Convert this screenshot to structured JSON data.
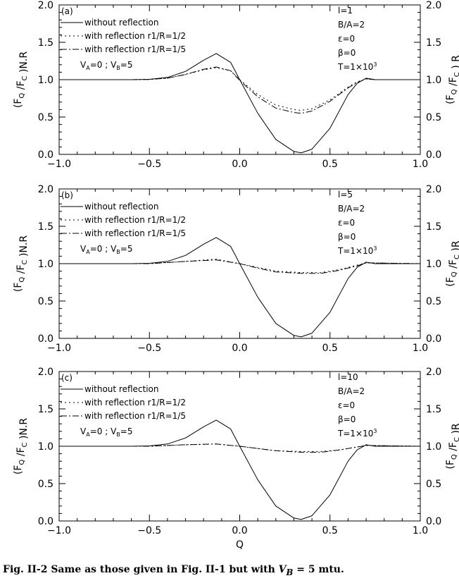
{
  "chart_data": [
    {
      "type": "line",
      "panel_label": "(a)",
      "xlim": [
        -1.0,
        1.0
      ],
      "ylim": [
        0.0,
        2.0
      ],
      "x_ticks": [
        "−1.0",
        "−0.5",
        "0.0",
        "0.5",
        "1.0"
      ],
      "y_ticks": [
        "0.0",
        "0.5",
        "1.0",
        "1.5",
        "2.0"
      ],
      "ylabel_left": "(F_Q /F_C )N.R",
      "ylabel_right": "(F_Q /F_C ) R",
      "xlabel": "",
      "legend": [
        "without reflection",
        "with reflection r1/R=1/2",
        "with reflection r1/R=1/5"
      ],
      "legend_extra": {
        "va": "V",
        "va_sub": "A",
        "va_val": "=0 ; ",
        "vb": "V",
        "vb_sub": "B",
        "vb_val": "=5"
      },
      "params": [
        "l=1",
        "B/A=2",
        "ε=0",
        "β=0"
      ],
      "temperature": {
        "prefix": "T=1×10",
        "exp": "3"
      },
      "series": [
        {
          "name": "without reflection",
          "x": [
            -1.0,
            -0.6,
            -0.5,
            -0.4,
            -0.3,
            -0.2,
            -0.13,
            -0.05,
            0.0,
            0.1,
            0.2,
            0.3,
            0.34,
            0.4,
            0.5,
            0.6,
            0.65,
            0.7,
            0.75,
            1.0
          ],
          "y": [
            1.0,
            1.0,
            1.005,
            1.03,
            1.11,
            1.26,
            1.35,
            1.23,
            1.0,
            0.55,
            0.2,
            0.04,
            0.02,
            0.07,
            0.35,
            0.8,
            0.95,
            1.02,
            1.0,
            1.0
          ]
        },
        {
          "name": "with reflection r1/R=1/2",
          "x": [
            -1.0,
            -0.6,
            -0.5,
            -0.4,
            -0.3,
            -0.2,
            -0.13,
            -0.05,
            0.0,
            0.1,
            0.2,
            0.3,
            0.34,
            0.4,
            0.5,
            0.6,
            0.65,
            0.7,
            0.75,
            1.0
          ],
          "y": [
            1.0,
            1.0,
            1.003,
            1.02,
            1.07,
            1.13,
            1.16,
            1.12,
            1.0,
            0.8,
            0.66,
            0.6,
            0.59,
            0.61,
            0.73,
            0.9,
            0.97,
            1.01,
            1.0,
            1.0
          ]
        },
        {
          "name": "with reflection r1/R=1/5",
          "x": [
            -1.0,
            -0.6,
            -0.5,
            -0.4,
            -0.3,
            -0.2,
            -0.13,
            -0.05,
            0.0,
            0.1,
            0.2,
            0.3,
            0.34,
            0.4,
            0.5,
            0.6,
            0.65,
            0.7,
            0.75,
            1.0
          ],
          "y": [
            1.0,
            1.0,
            1.003,
            1.02,
            1.07,
            1.14,
            1.17,
            1.12,
            0.99,
            0.77,
            0.62,
            0.56,
            0.55,
            0.58,
            0.71,
            0.89,
            0.96,
            1.01,
            1.0,
            1.0
          ]
        }
      ]
    },
    {
      "type": "line",
      "panel_label": "(b)",
      "xlim": [
        -1.0,
        1.0
      ],
      "ylim": [
        0.0,
        2.0
      ],
      "x_ticks": [
        "−1.0",
        "−0.5",
        "0.0",
        "0.5",
        "1.0"
      ],
      "y_ticks": [
        "0.0",
        "0.5",
        "1.0",
        "1.5",
        "2.0"
      ],
      "ylabel_left": "(F_Q /F_C )N.R",
      "ylabel_right": "(F_Q /F_C )R",
      "xlabel": "",
      "legend": [
        "without reflection",
        "with reflection r1/R=1/2",
        "with reflection r1/R=1/5"
      ],
      "legend_extra": {
        "va": "V",
        "va_sub": "A",
        "va_val": "=0 ; ",
        "vb": "V",
        "vb_sub": "B",
        "vb_val": "=5"
      },
      "params": [
        "l=5",
        "B/A=2",
        "ε=0",
        "β=0"
      ],
      "temperature": {
        "prefix": "T=1×10",
        "exp": "3"
      },
      "series": [
        {
          "name": "without reflection",
          "x": [
            -1.0,
            -0.6,
            -0.5,
            -0.4,
            -0.3,
            -0.2,
            -0.13,
            -0.05,
            0.0,
            0.1,
            0.2,
            0.3,
            0.34,
            0.4,
            0.5,
            0.6,
            0.65,
            0.7,
            0.75,
            1.0
          ],
          "y": [
            1.0,
            1.0,
            1.005,
            1.03,
            1.11,
            1.26,
            1.35,
            1.23,
            1.0,
            0.55,
            0.2,
            0.04,
            0.02,
            0.07,
            0.35,
            0.8,
            0.95,
            1.02,
            1.0,
            1.0
          ]
        },
        {
          "name": "with reflection r1/R=1/2",
          "x": [
            -1.0,
            -0.5,
            -0.3,
            -0.13,
            0.0,
            0.1,
            0.2,
            0.34,
            0.45,
            0.55,
            0.65,
            0.7,
            1.0
          ],
          "y": [
            1.0,
            1.0,
            1.03,
            1.06,
            1.0,
            0.95,
            0.9,
            0.88,
            0.88,
            0.92,
            0.98,
            1.01,
            1.0
          ]
        },
        {
          "name": "with reflection r1/R=1/5",
          "x": [
            -1.0,
            -0.5,
            -0.3,
            -0.13,
            0.0,
            0.1,
            0.2,
            0.34,
            0.45,
            0.55,
            0.65,
            0.7,
            1.0
          ],
          "y": [
            1.0,
            1.0,
            1.03,
            1.05,
            1.0,
            0.94,
            0.89,
            0.87,
            0.87,
            0.91,
            0.97,
            1.01,
            1.0
          ]
        }
      ]
    },
    {
      "type": "line",
      "panel_label": "(c)",
      "xlim": [
        -1.0,
        1.0
      ],
      "ylim": [
        0.0,
        2.0
      ],
      "x_ticks": [
        "−1.0",
        "−0.5",
        "0.0",
        "0.5",
        "1.0"
      ],
      "y_ticks": [
        "0.0",
        "0.5",
        "1.0",
        "1.5",
        "2.0"
      ],
      "ylabel_left": "(F_Q /F_C )N.R",
      "ylabel_right": "(F_Q /F_C )R",
      "xlabel": "Q",
      "legend": [
        "without reflection",
        "with reflection r1/R=1/2",
        "with reflection r1/R=1/5"
      ],
      "legend_extra": {
        "va": "V",
        "va_sub": "A",
        "va_val": "=0 ; ",
        "vb": "V",
        "vb_sub": "B",
        "vb_val": "=5"
      },
      "params": [
        "l=10",
        "B/A=2",
        "ε=0",
        "β=0"
      ],
      "temperature": {
        "prefix": "T=1×10",
        "exp": "3"
      },
      "series": [
        {
          "name": "without reflection",
          "x": [
            -1.0,
            -0.6,
            -0.5,
            -0.4,
            -0.3,
            -0.2,
            -0.13,
            -0.05,
            0.0,
            0.1,
            0.2,
            0.3,
            0.34,
            0.4,
            0.5,
            0.6,
            0.65,
            0.7,
            0.75,
            1.0
          ],
          "y": [
            1.0,
            1.0,
            1.005,
            1.03,
            1.11,
            1.26,
            1.35,
            1.23,
            1.0,
            0.55,
            0.2,
            0.04,
            0.02,
            0.07,
            0.35,
            0.8,
            0.95,
            1.02,
            1.0,
            1.0
          ]
        },
        {
          "name": "with reflection r1/R=1/2",
          "x": [
            -1.0,
            -0.5,
            -0.3,
            -0.13,
            0.0,
            0.1,
            0.2,
            0.34,
            0.45,
            0.55,
            0.65,
            0.7,
            1.0
          ],
          "y": [
            1.0,
            1.0,
            1.02,
            1.03,
            1.0,
            0.97,
            0.94,
            0.93,
            0.93,
            0.95,
            0.99,
            1.01,
            1.0
          ]
        },
        {
          "name": "with reflection r1/R=1/5",
          "x": [
            -1.0,
            -0.5,
            -0.3,
            -0.13,
            0.0,
            0.1,
            0.2,
            0.34,
            0.45,
            0.55,
            0.65,
            0.7,
            1.0
          ],
          "y": [
            1.0,
            1.0,
            1.02,
            1.03,
            1.0,
            0.97,
            0.94,
            0.92,
            0.92,
            0.95,
            0.99,
            1.01,
            1.0
          ]
        }
      ]
    }
  ],
  "caption": {
    "prefix": "Fig. II-2 Same as those given in Fig. II-1 but with ",
    "var": "V",
    "var_sub": "B",
    "suffix": " = 5 mtu."
  }
}
